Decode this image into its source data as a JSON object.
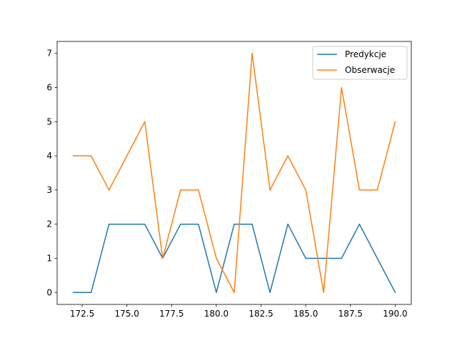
{
  "chart_data": {
    "type": "line",
    "title": "",
    "xlabel": "",
    "ylabel": "",
    "x": [
      172,
      173,
      174,
      175,
      176,
      177,
      178,
      179,
      180,
      181,
      182,
      183,
      184,
      185,
      186,
      187,
      188,
      189,
      190
    ],
    "series": [
      {
        "name": "Predykcje",
        "color": "#1f77b4",
        "values": [
          0,
          0,
          2,
          2,
          2,
          1,
          2,
          2,
          0,
          2,
          2,
          0,
          2,
          1,
          1,
          1,
          2,
          1,
          0
        ]
      },
      {
        "name": "Obserwacje",
        "color": "#ff7f0e",
        "values": [
          4,
          4,
          3,
          4,
          5,
          1,
          3,
          3,
          1,
          0,
          7,
          3,
          4,
          3,
          0,
          6,
          3,
          3,
          5
        ]
      }
    ],
    "xlim": [
      171.1,
      190.9
    ],
    "ylim": [
      -0.35,
      7.35
    ],
    "xticks": [
      172.5,
      175.0,
      177.5,
      180.0,
      182.5,
      185.0,
      187.5,
      190.0
    ],
    "xtick_labels": [
      "172.5",
      "175.0",
      "177.5",
      "180.0",
      "182.5",
      "185.0",
      "187.5",
      "190.0"
    ],
    "yticks": [
      0,
      1,
      2,
      3,
      4,
      5,
      6,
      7
    ],
    "ytick_labels": [
      "0",
      "1",
      "2",
      "3",
      "4",
      "5",
      "6",
      "7"
    ],
    "grid": false,
    "legend_position": "top-right"
  }
}
